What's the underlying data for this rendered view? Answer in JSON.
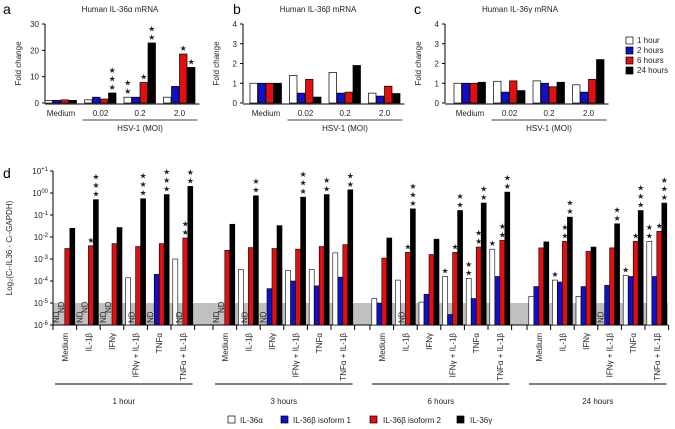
{
  "colors": {
    "1 hour": "#ffffff",
    "2 hours": "#1010c8",
    "6 hours": "#e01010",
    "24 hours": "#000000",
    "IL-36α": "#ffffff",
    "IL-36β isoform 1": "#1010c8",
    "IL-36β isoform 2": "#e01010",
    "IL-36γ": "#000000",
    "nd_band": "#c0c0c0"
  },
  "chart_data": [
    {
      "panel": "a",
      "type": "bar",
      "title": "Human IL-36α mRNA",
      "ylabel": "Fold change",
      "xlabel": "HSV-1 (MOI)",
      "ylim": [
        0,
        30
      ],
      "yticks": [
        0,
        10,
        20,
        30
      ],
      "categories": [
        "Medium",
        "0.02",
        "0.2",
        "2.0"
      ],
      "series": [
        {
          "name": "1 hour",
          "values": [
            1,
            1.2,
            2.2,
            2.2
          ]
        },
        {
          "name": "2 hours",
          "values": [
            1,
            2.2,
            2.2,
            6.3
          ]
        },
        {
          "name": "6 hours",
          "values": [
            1.2,
            1.5,
            7.8,
            18.6
          ]
        },
        {
          "name": "24 hours",
          "values": [
            1,
            3.8,
            22.8,
            13.5
          ]
        }
      ],
      "stars": [
        [
          "",
          "",
          "",
          ""
        ],
        [
          "",
          "",
          "",
          "***"
        ],
        [
          "**",
          "",
          "*",
          "**"
        ],
        [
          "",
          "",
          "*",
          "*"
        ]
      ]
    },
    {
      "panel": "b",
      "type": "bar",
      "title": "Human IL-36β mRNA",
      "ylabel": "Fold change",
      "xlabel": "HSV-1 (MOI)",
      "ylim": [
        0,
        4
      ],
      "yticks": [
        0,
        1,
        2,
        3,
        4
      ],
      "categories": [
        "Medium",
        "0.02",
        "0.2",
        "2.0"
      ],
      "series": [
        {
          "name": "1 hour",
          "values": [
            1,
            1.4,
            1.55,
            0.5
          ]
        },
        {
          "name": "2 hours",
          "values": [
            1,
            0.5,
            0.5,
            0.35
          ]
        },
        {
          "name": "6 hours",
          "values": [
            1,
            1.2,
            0.55,
            0.85
          ]
        },
        {
          "name": "24 hours",
          "values": [
            1,
            0.3,
            1.9,
            0.48
          ]
        }
      ]
    },
    {
      "panel": "c",
      "type": "bar",
      "title": "Human IL-36γ mRNA",
      "ylabel": "Fold change",
      "xlabel": "HSV-1 (MOI)",
      "ylim": [
        0,
        4
      ],
      "yticks": [
        0,
        1,
        2,
        3,
        4
      ],
      "categories": [
        "Medium",
        "0.02",
        "0.2",
        "2.0"
      ],
      "series": [
        {
          "name": "1 hour",
          "values": [
            1,
            1.1,
            1.12,
            0.92
          ]
        },
        {
          "name": "2 hours",
          "values": [
            1,
            0.55,
            1.0,
            0.55
          ]
        },
        {
          "name": "6 hours",
          "values": [
            1,
            1.12,
            0.82,
            1.2
          ]
        },
        {
          "name": "24 hours",
          "values": [
            1.05,
            0.63,
            1.05,
            2.2
          ]
        }
      ]
    },
    {
      "panel": "d",
      "type": "bar",
      "ylabel": "Log₂(Cₜ-IL36 - Cₜ-GAPDH)",
      "yscale": "log",
      "ylim": [
        1e-06,
        10
      ],
      "ytick_exponents": [
        "+1",
        "00",
        "-1",
        "-2",
        "-3",
        "-4",
        "-5",
        "-6"
      ],
      "nd_label": "ND",
      "series_names": [
        "IL-36α",
        "IL-36β isoform 1",
        "IL-36β isoform 2",
        "IL-36γ"
      ],
      "conditions": [
        "Medium",
        "IL-1β",
        "IFNγ",
        "IFNγ + IL-1β",
        "TNFα",
        "TNFα + IL-1β"
      ],
      "groups": [
        {
          "label": "1 hour",
          "values": [
            [
              null,
              null,
              0.003,
              0.025
            ],
            [
              null,
              null,
              0.004,
              0.5
            ],
            [
              null,
              null,
              0.005,
              0.027
            ],
            [
              0.00014,
              null,
              0.0037,
              0.55
            ],
            [
              null,
              0.0002,
              0.005,
              0.85
            ],
            [
              0.001,
              null,
              0.009,
              2.0
            ]
          ],
          "stars": [
            [
              "",
              "",
              "",
              ""
            ],
            [
              "",
              "",
              "*",
              "***"
            ],
            [
              "",
              "",
              "",
              ""
            ],
            [
              "",
              "",
              "",
              "***"
            ],
            [
              "",
              "",
              "",
              "***"
            ],
            [
              "",
              "",
              "**",
              "**"
            ]
          ]
        },
        {
          "label": "3 hours",
          "values": [
            [
              null,
              null,
              0.0025,
              0.038
            ],
            [
              0.00033,
              null,
              0.0033,
              0.75
            ],
            [
              null,
              4.5e-05,
              0.003,
              0.033
            ],
            [
              0.0003,
              0.0001,
              0.0028,
              0.65
            ],
            [
              0.00033,
              6e-05,
              0.0037,
              0.85
            ],
            [
              0.0019,
              0.00015,
              0.0045,
              1.4
            ]
          ],
          "stars": [
            [
              "",
              "",
              "",
              ""
            ],
            [
              "",
              "",
              "",
              "**"
            ],
            [
              "",
              "",
              "",
              ""
            ],
            [
              "",
              "",
              "",
              "***"
            ],
            [
              "",
              "",
              "",
              "**"
            ],
            [
              "",
              "",
              "",
              "**"
            ]
          ]
        },
        {
          "label": "6 hours",
          "values": [
            [
              1.6e-05,
              1e-05,
              0.0011,
              0.009
            ],
            [
              0.00011,
              null,
              0.002,
              0.19
            ],
            [
              1.1e-05,
              2.5e-05,
              0.0016,
              0.008
            ],
            [
              0.00016,
              3e-06,
              0.002,
              0.16
            ],
            [
              0.00013,
              1.6e-05,
              0.0035,
              0.35
            ],
            [
              0.0028,
              0.00016,
              0.007,
              1.1
            ]
          ],
          "stars": [
            [
              "",
              "",
              "",
              ""
            ],
            [
              "",
              "",
              "*",
              "***"
            ],
            [
              "",
              "",
              "",
              ""
            ],
            [
              "*",
              "",
              "*",
              "**"
            ],
            [
              "**",
              "",
              "**",
              "**"
            ],
            [
              "*",
              "",
              "**",
              "**"
            ]
          ]
        },
        {
          "label": "24 hours",
          "values": [
            [
              2e-05,
              5.6e-05,
              0.0032,
              0.006
            ],
            [
              0.00011,
              9e-05,
              0.0063,
              0.08
            ],
            [
              2e-05,
              5.6e-05,
              0.0022,
              0.0035
            ],
            [
              null,
              6.3e-05,
              0.0032,
              0.04
            ],
            [
              0.00018,
              0.00016,
              0.0063,
              0.16
            ],
            [
              0.0063,
              0.00016,
              0.018,
              0.35
            ]
          ],
          "stars": [
            [
              "",
              "",
              "",
              ""
            ],
            [
              "*",
              "",
              "**",
              "**"
            ],
            [
              "",
              "",
              "",
              ""
            ],
            [
              "",
              "",
              "",
              "**"
            ],
            [
              "*",
              "",
              "*",
              "***"
            ],
            [
              "**",
              "",
              "*",
              "***"
            ]
          ]
        }
      ]
    }
  ],
  "legend_abc": [
    "1 hour",
    "2 hours",
    "6 hours",
    "24 hours"
  ],
  "legend_d": [
    "IL-36α",
    "IL-36β isoform 1",
    "IL-36β isoform 2",
    "IL-36γ"
  ],
  "panel_labels": [
    "a",
    "b",
    "c",
    "d"
  ]
}
